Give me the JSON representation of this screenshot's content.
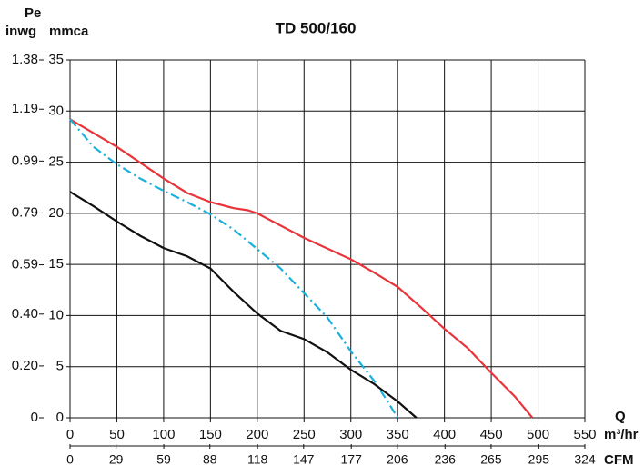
{
  "chart_data": {
    "type": "line",
    "title": "TD 500/160",
    "ylabel": "Pe",
    "y2label": "inwg",
    "yunit": "mmca",
    "xlabel": "Q",
    "xunit": "m³/hr",
    "x2unit": "CFM",
    "xlim": [
      0,
      550
    ],
    "xticks": [
      0,
      50,
      100,
      150,
      200,
      250,
      300,
      350,
      400,
      450,
      500,
      550
    ],
    "x2lim": [
      0,
      324
    ],
    "x2ticks": [
      0,
      29,
      59,
      88,
      118,
      147,
      177,
      206,
      236,
      265,
      295,
      324
    ],
    "ylim": [
      0,
      35
    ],
    "yticks": [
      0,
      5,
      10,
      15,
      20,
      25,
      30,
      35
    ],
    "y2lim": [
      0,
      1.38
    ],
    "y2ticks": [
      0,
      {
        "value": 0.2,
        "label": "0.20"
      },
      {
        "value": 0.4,
        "label": "0.40"
      },
      0.59,
      0.79,
      0.99,
      1.19,
      1.38
    ],
    "grid": true,
    "series": [
      {
        "color": "#e8343a",
        "dash": "solid",
        "x": [
          0,
          50,
          100,
          125,
          150,
          175,
          190,
          200,
          250,
          300,
          325,
          350,
          375,
          400,
          425,
          450,
          475,
          494
        ],
        "values": [
          29.2,
          26.5,
          23.4,
          22,
          21.1,
          20.5,
          20.3,
          20,
          17.6,
          15.5,
          14.2,
          12.8,
          10.8,
          8.7,
          6.8,
          4.4,
          2.1,
          0
        ]
      },
      {
        "color": "#1ab0dc",
        "dash": "dashdot",
        "x": [
          0,
          25,
          50,
          75,
          100,
          125,
          150,
          175,
          200,
          225,
          250,
          275,
          300,
          325,
          340,
          350
        ],
        "values": [
          29.2,
          26.5,
          24.8,
          23.4,
          22.2,
          21.1,
          19.9,
          18.4,
          16.5,
          14.6,
          12.2,
          9.8,
          6.5,
          3.6,
          1.5,
          0
        ]
      },
      {
        "color": "#111111",
        "dash": "solid",
        "x": [
          0,
          25,
          50,
          75,
          100,
          125,
          150,
          175,
          200,
          225,
          250,
          275,
          300,
          325,
          350,
          370
        ],
        "values": [
          22.1,
          20.7,
          19.2,
          17.8,
          16.6,
          15.8,
          14.6,
          12.3,
          10.2,
          8.5,
          7.7,
          6.4,
          4.7,
          3.3,
          1.6,
          0
        ]
      }
    ]
  }
}
